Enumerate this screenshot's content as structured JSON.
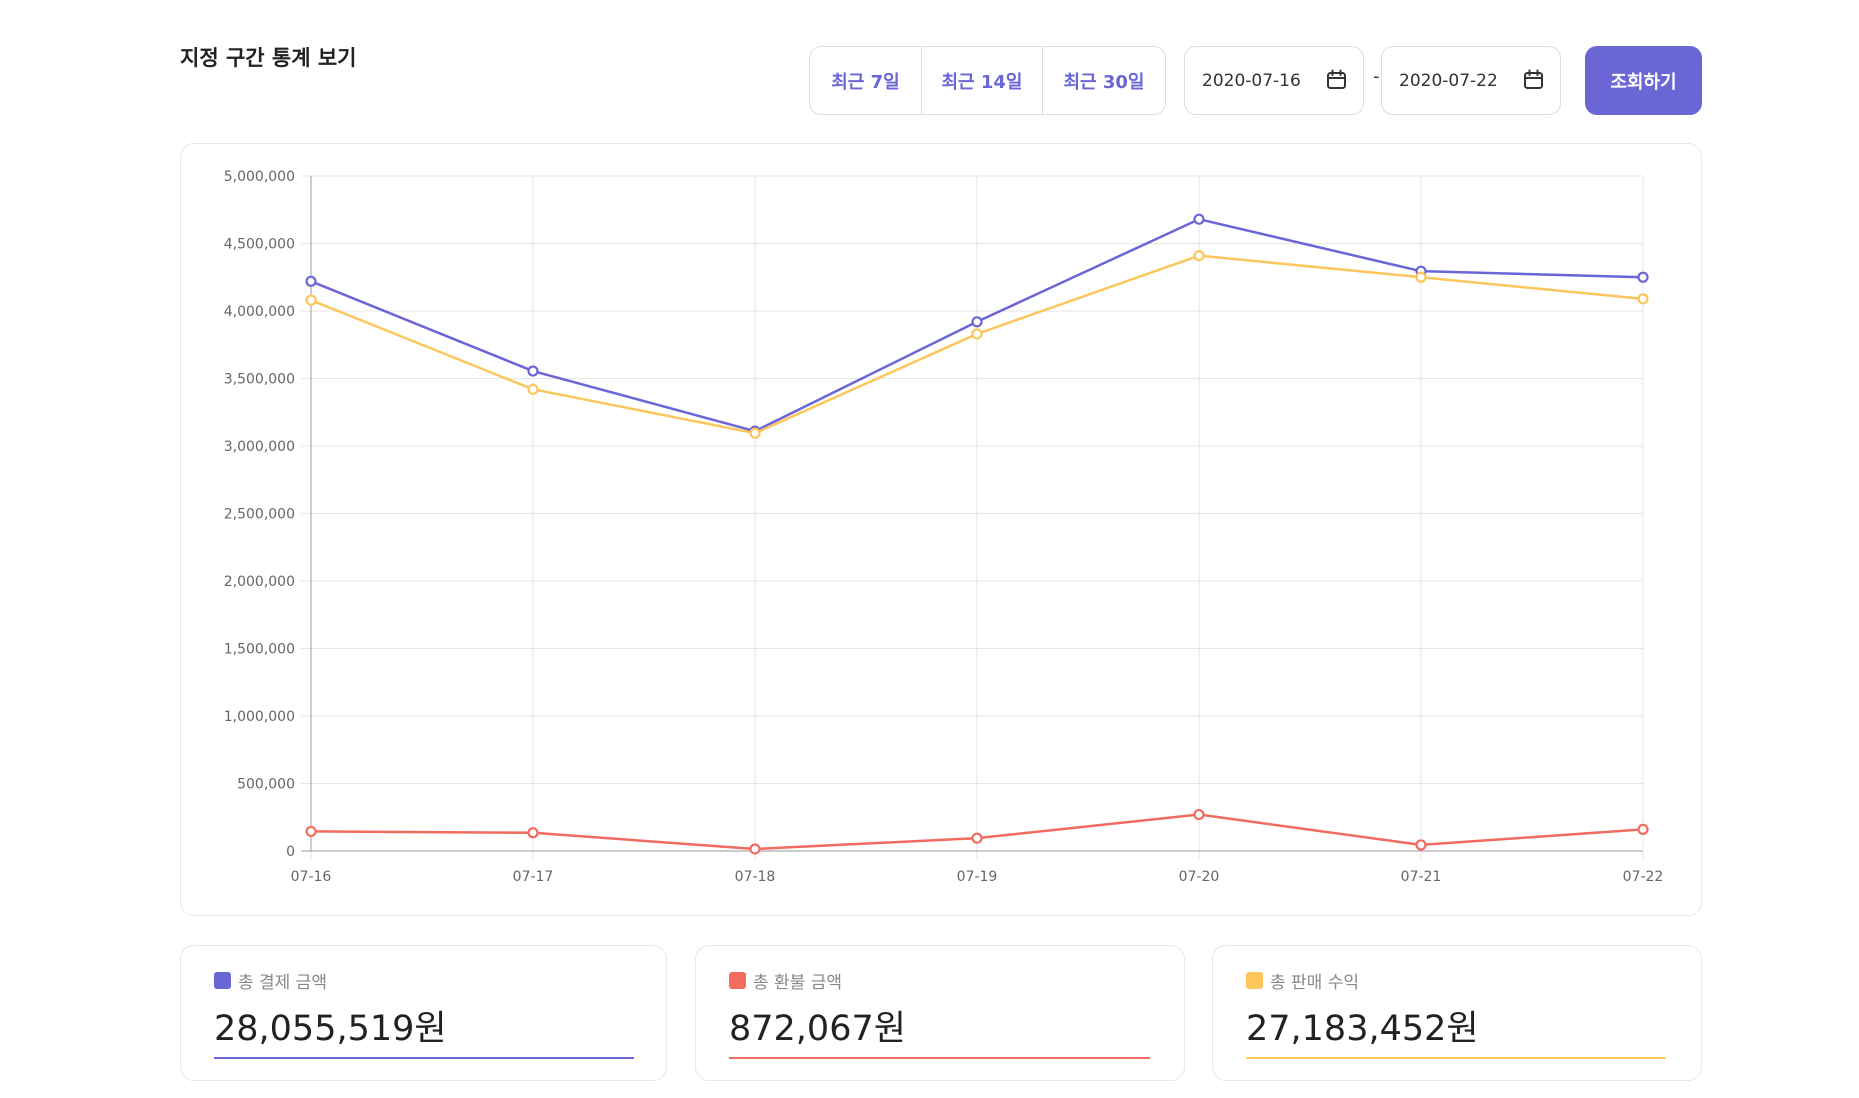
{
  "page_title": "지정 구간 통계 보기",
  "range_buttons": [
    {
      "label": "최근 7일"
    },
    {
      "label": "최근 14일"
    },
    {
      "label": "최근 30일"
    }
  ],
  "date_range": {
    "start": "2020-07-16",
    "separator": "-",
    "end": "2020-07-22"
  },
  "search_button": "조회하기",
  "colors": {
    "accent": "#6b66d6",
    "payment": "#6b66d6",
    "refund": "#f16b5e",
    "revenue": "#fdc65c"
  },
  "chart_data": {
    "type": "line",
    "categories": [
      "07-16",
      "07-17",
      "07-18",
      "07-19",
      "07-20",
      "07-21",
      "07-22"
    ],
    "ylim": [
      0,
      5000000
    ],
    "yticks": [
      0,
      500000,
      1000000,
      1500000,
      2000000,
      2500000,
      3000000,
      3500000,
      4000000,
      4500000,
      5000000
    ],
    "ytick_labels": [
      "0",
      "500,000",
      "1,000,000",
      "1,500,000",
      "2,000,000",
      "2,500,000",
      "3,000,000",
      "3,500,000",
      "4,000,000",
      "4,500,000",
      "5,000,000"
    ],
    "grid": true,
    "series": [
      {
        "key": "payment",
        "color": "#6b66d6",
        "values": [
          4220000,
          3555000,
          3110000,
          3920000,
          4680000,
          4295000,
          4250000
        ]
      },
      {
        "key": "revenue",
        "color": "#fdc65c",
        "values": [
          4080000,
          3420000,
          3095000,
          3830000,
          4410000,
          4250000,
          4090000
        ]
      },
      {
        "key": "refund",
        "color": "#f16b5e",
        "values": [
          145000,
          135000,
          15000,
          95000,
          270000,
          45000,
          160000
        ]
      }
    ]
  },
  "stats": [
    {
      "label": "총 결제 금액",
      "value": "28,055,519원",
      "color": "#6b66d6"
    },
    {
      "label": "총 환불 금액",
      "value": "872,067원",
      "color": "#f16b5e"
    },
    {
      "label": "총 판매 수익",
      "value": "27,183,452원",
      "color": "#fdc65c"
    }
  ]
}
